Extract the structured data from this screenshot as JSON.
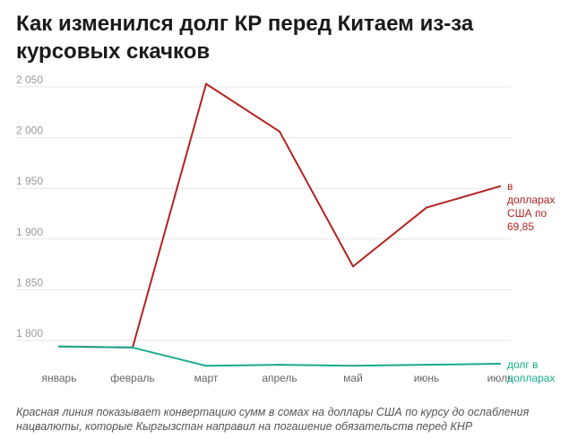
{
  "title": "Как изменился долг КР перед Китаем из-за курсовых скачков",
  "footnote": "Красная линия показывает конвертацию сумм в сомах на доллары США по курсу до ослабления нацвалюты, которые Кыргызстан направил на погашение обязательств перед КНР",
  "colors": {
    "red": "#b22222",
    "teal": "#1aab8f",
    "grid": "#e4e4e4",
    "tick": "#9a9a9a",
    "xtick": "#666666"
  },
  "chart_data": {
    "type": "line",
    "categories": [
      "январь",
      "февраль",
      "март",
      "апрель",
      "май",
      "июнь",
      "июль"
    ],
    "ylim": [
      1780,
      2060
    ],
    "yticks": [
      1800,
      1850,
      1900,
      1950,
      2000,
      2050
    ],
    "ytick_labels": [
      "1 800",
      "1 850",
      "1 900",
      "1 950",
      "2 000",
      "2 050"
    ],
    "grid": true,
    "series": [
      {
        "name": "в долларах США по 69,85",
        "name_lines": [
          "в",
          "долларах",
          "США по",
          "69,85"
        ],
        "color": "#b22222",
        "values": [
          1794,
          1793,
          2053,
          2006,
          1873,
          1931,
          1952
        ]
      },
      {
        "name": "долг в долларах",
        "name_lines": [
          "долг в",
          "долларах"
        ],
        "color": "#1aab8f",
        "values": [
          1794,
          1793,
          1775,
          1776,
          1775,
          1776,
          1777
        ]
      }
    ]
  }
}
